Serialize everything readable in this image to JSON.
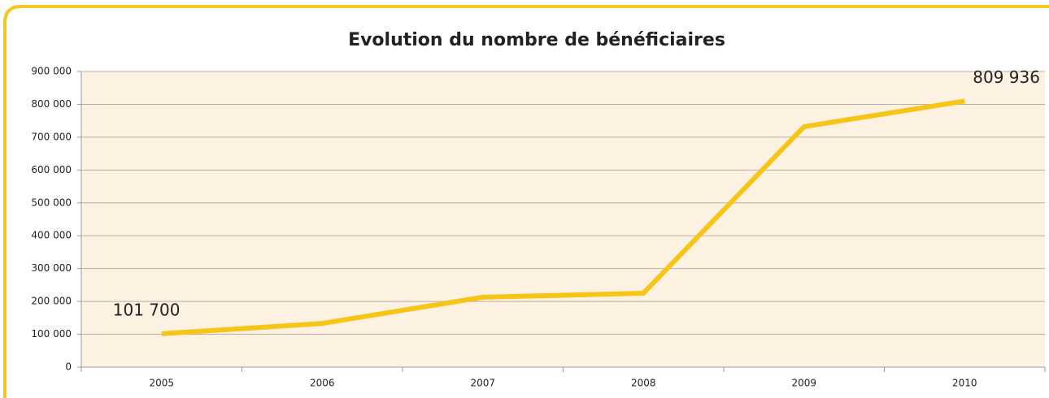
{
  "chart_data": {
    "type": "line",
    "title": "Evolution du nombre de bénéficiaires",
    "categories": [
      "2005",
      "2006",
      "2007",
      "2008",
      "2009",
      "2010"
    ],
    "values": [
      101700,
      133000,
      213000,
      225000,
      732000,
      809936
    ],
    "value_labels": [
      "101 700",
      null,
      null,
      null,
      null,
      "809 936"
    ],
    "color": "#f5c518",
    "ylim": [
      0,
      900000
    ],
    "yticks": [
      0,
      {
        "value": 100000,
        "label": "100 000"
      },
      {
        "value": 200000,
        "label": "200 000"
      },
      {
        "value": 300000,
        "label": "300 000"
      },
      {
        "value": 400000,
        "label": "400 000"
      },
      {
        "value": 500000,
        "label": "500 000"
      },
      {
        "value": 600000,
        "label": "600 000"
      },
      {
        "value": 700000,
        "label": "700 000"
      },
      {
        "value": 800000,
        "label": "800 000"
      },
      {
        "value": 900000,
        "label": "900 000"
      }
    ],
    "grid": true
  }
}
